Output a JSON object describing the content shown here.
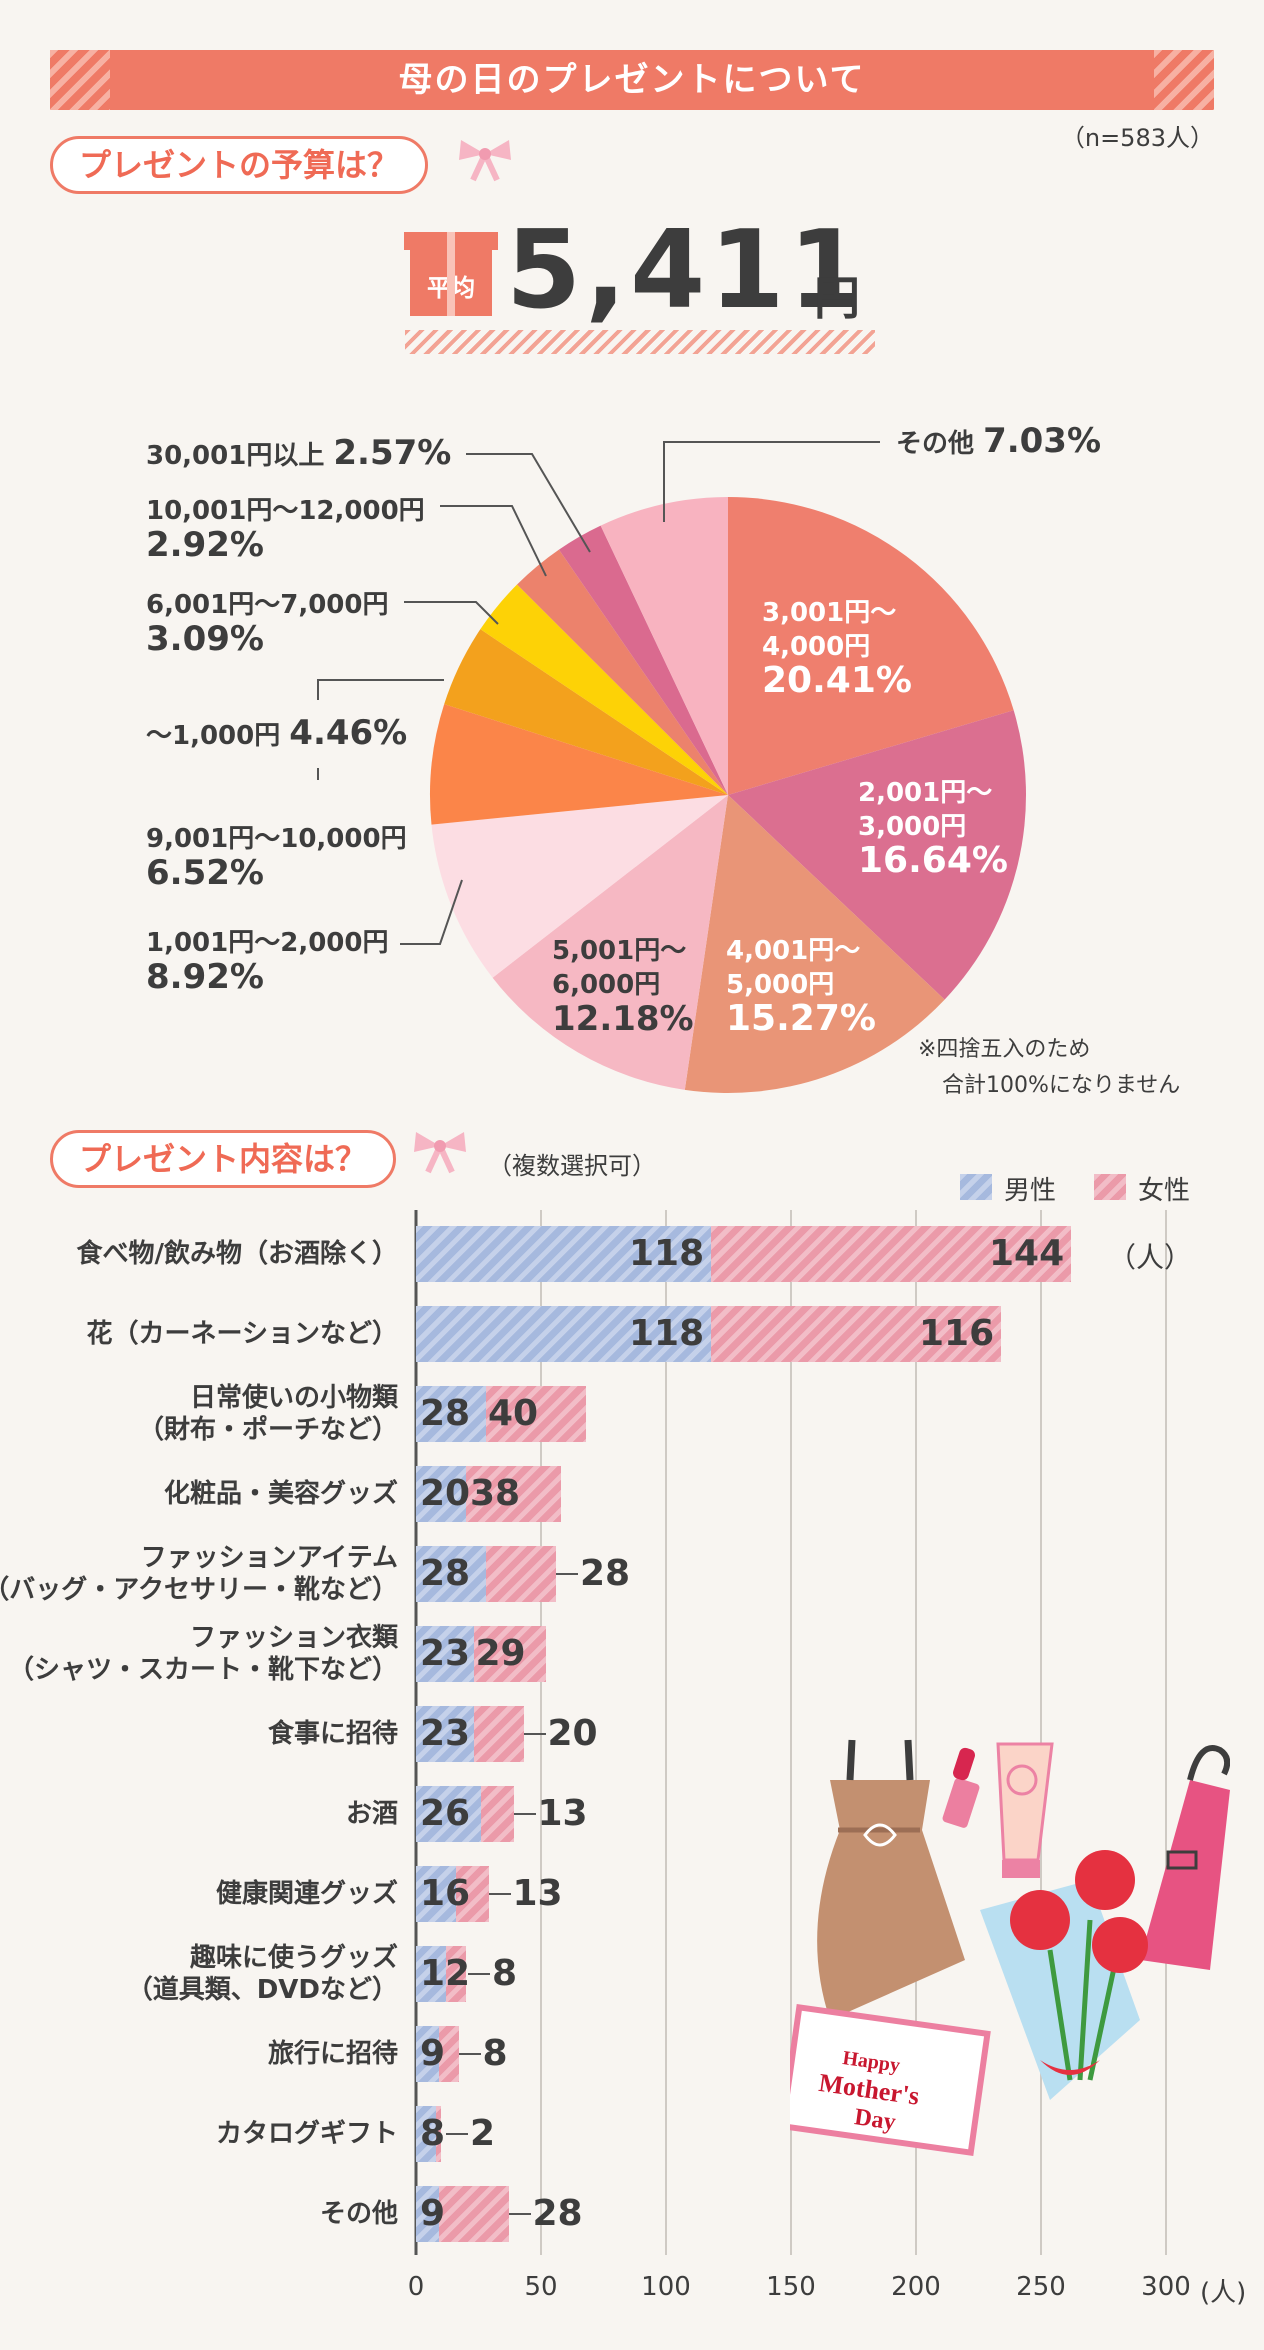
{
  "header": {
    "title": "母の日のプレゼントについて",
    "sample": "（n=583人）"
  },
  "budget": {
    "heading": "プレゼントの予算は？",
    "avg_label": "平均",
    "avg_value": "5,411",
    "avg_unit": "円"
  },
  "colors": {
    "male": "#a6b9de",
    "female": "#eb9aa9",
    "accent": "#ef7a66"
  },
  "note": {
    "line1": "※四捨五入のため",
    "line2": "合計100%になりません"
  },
  "contents": {
    "heading": "プレゼント内容は？",
    "subheading": "（複数選択可）",
    "unit": "（人）",
    "axis_unit": "(人)"
  },
  "chart_data": [
    {
      "type": "pie",
      "title": "プレゼントの予算は？",
      "labels": [
        "3,001円〜4,000円",
        "2,001円〜3,000円",
        "4,001円〜5,000円",
        "5,001円〜6,000円",
        "1,001円〜2,000円",
        "9,001円〜10,000円",
        "〜1,000円",
        "6,001円〜7,000円",
        "10,001円〜12,000円",
        "30,001円以上",
        "その他"
      ],
      "values": [
        20.41,
        16.64,
        15.27,
        12.18,
        8.92,
        6.52,
        4.46,
        3.09,
        2.92,
        2.57,
        7.03
      ],
      "label_lines": [
        [
          "3,001円〜",
          "4,000円"
        ],
        [
          "2,001円〜",
          "3,000円"
        ],
        [
          "4,001円〜",
          "5,000円"
        ],
        [
          "5,001円〜",
          "6,000円"
        ],
        [
          "1,001円〜2,000円"
        ],
        [
          "9,001円〜10,000円"
        ],
        [
          "〜1,000円"
        ],
        [
          "6,001円〜7,000円"
        ],
        [
          "10,001円〜12,000円"
        ],
        [
          "30,001円以上"
        ],
        [
          "その他"
        ]
      ],
      "pct_text": [
        "20.41%",
        "16.64%",
        "15.27%",
        "12.18%",
        "8.92%",
        "6.52%",
        "4.46%",
        "3.09%",
        "2.92%",
        "2.57%",
        "7.03%"
      ],
      "colors": [
        "#ef7f6e",
        "#db6f90",
        "#e99577",
        "#f6b8c3",
        "#fcdde3",
        "#fb8549",
        "#f3a11d",
        "#fdd206",
        "#ec826c",
        "#da6a8f",
        "#f8b3c0"
      ]
    },
    {
      "type": "bar",
      "title": "プレゼント内容は？",
      "orientation": "horizontal-stacked",
      "categories": [
        [
          "食べ物/飲み物（お酒除く）"
        ],
        [
          "花（カーネーションなど）"
        ],
        [
          "日常使いの小物類",
          "（財布・ポーチなど）"
        ],
        [
          "化粧品・美容グッズ"
        ],
        [
          "ファッションアイテム",
          "（バッグ・アクセサリー・靴など）"
        ],
        [
          "ファッション衣類",
          "（シャツ・スカート・靴下など）"
        ],
        [
          "食事に招待"
        ],
        [
          "お酒"
        ],
        [
          "健康関連グッズ"
        ],
        [
          "趣味に使うグッズ",
          "（道具類、DVDなど）"
        ],
        [
          "旅行に招待"
        ],
        [
          "カタログギフト"
        ],
        [
          "その他"
        ]
      ],
      "series": [
        {
          "name": "男性",
          "values": [
            118,
            118,
            28,
            20,
            28,
            23,
            23,
            26,
            16,
            12,
            9,
            8,
            9
          ]
        },
        {
          "name": "女性",
          "values": [
            144,
            116,
            40,
            38,
            28,
            29,
            20,
            13,
            13,
            8,
            8,
            2,
            28
          ]
        }
      ],
      "xlim": [
        0,
        300
      ],
      "xticks": [
        "0",
        "50",
        "100",
        "150",
        "200",
        "250",
        "300"
      ],
      "xlabel": "(人)"
    }
  ]
}
